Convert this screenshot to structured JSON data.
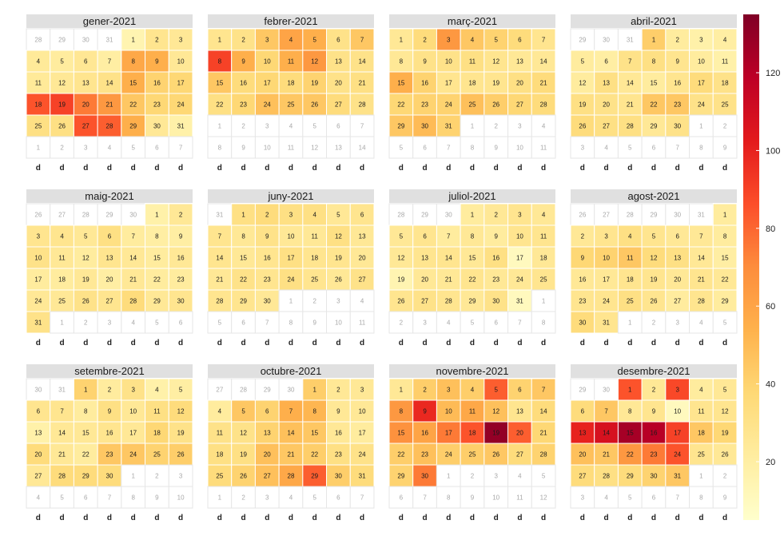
{
  "chart_data": {
    "type": "heatmap",
    "subtype": "calendar",
    "year": 2021,
    "week_start": "monday",
    "weekday_labels": [
      "d",
      "d",
      "d",
      "d",
      "d",
      "d",
      "d"
    ],
    "value_range": [
      5,
      135
    ],
    "colorbar": {
      "ticks": [
        20,
        40,
        60,
        80,
        100,
        120
      ],
      "colors": [
        "#ffffcc",
        "#ffeda0",
        "#fed976",
        "#feb24c",
        "#fd8d3c",
        "#fc4e2a",
        "#e31a1c",
        "#bd0026",
        "#800026"
      ],
      "placement": "right"
    },
    "months": [
      {
        "title": "gener-2021",
        "values": [
          15,
          28,
          25,
          24,
          22,
          26,
          20,
          58,
          55,
          25,
          24,
          25,
          28,
          30,
          55,
          40,
          38,
          85,
          90,
          75,
          65,
          45,
          38,
          38,
          32,
          32,
          85,
          82,
          55,
          25,
          18
        ]
      },
      {
        "title": "febrer-2021",
        "values": [
          28,
          30,
          45,
          60,
          55,
          30,
          45,
          90,
          55,
          38,
          55,
          65,
          30,
          30,
          45,
          35,
          38,
          35,
          40,
          30,
          32,
          32,
          38,
          48,
          45,
          45,
          35,
          30
        ]
      },
      {
        "title": "març-2021",
        "values": [
          25,
          35,
          65,
          45,
          40,
          35,
          28,
          25,
          30,
          30,
          32,
          28,
          25,
          25,
          55,
          40,
          28,
          28,
          28,
          32,
          35,
          38,
          40,
          40,
          48,
          42,
          38,
          35,
          45,
          50,
          40
        ]
      },
      {
        "title": "abril-2021",
        "values": [
          42,
          22,
          18,
          20,
          22,
          20,
          30,
          32,
          28,
          22,
          18,
          22,
          32,
          25,
          22,
          28,
          35,
          30,
          32,
          30,
          28,
          45,
          45,
          30,
          30,
          35,
          32,
          32,
          25,
          30
        ]
      },
      {
        "title": "maig-2021",
        "values": [
          18,
          25,
          28,
          28,
          25,
          32,
          22,
          20,
          20,
          30,
          25,
          22,
          28,
          25,
          22,
          25,
          22,
          22,
          25,
          20,
          25,
          22,
          22,
          25,
          25,
          30,
          28,
          35,
          25,
          28,
          30
        ]
      },
      {
        "title": "juny-2021",
        "values": [
          32,
          35,
          32,
          32,
          25,
          28,
          28,
          25,
          30,
          25,
          25,
          32,
          25,
          28,
          25,
          28,
          32,
          28,
          28,
          25,
          25,
          30,
          28,
          32,
          28,
          25,
          30,
          28,
          28,
          25
        ]
      },
      {
        "title": "juliol-2021",
        "values": [
          22,
          25,
          28,
          25,
          25,
          28,
          22,
          25,
          22,
          28,
          28,
          25,
          28,
          28,
          25,
          32,
          10,
          25,
          15,
          25,
          25,
          28,
          25,
          25,
          28,
          28,
          30,
          28,
          25,
          30,
          10
        ]
      },
      {
        "title": "agost-2021",
        "values": [
          22,
          25,
          28,
          32,
          28,
          25,
          25,
          22,
          38,
          40,
          45,
          35,
          32,
          25,
          20,
          25,
          25,
          28,
          28,
          25,
          28,
          25,
          28,
          28,
          32,
          28,
          22,
          28,
          22,
          35,
          28
        ]
      },
      {
        "title": "setembre-2021",
        "values": [
          40,
          22,
          30,
          18,
          20,
          28,
          28,
          22,
          32,
          25,
          32,
          35,
          18,
          25,
          25,
          28,
          25,
          38,
          30,
          35,
          25,
          22,
          45,
          45,
          40,
          42,
          25,
          35,
          35,
          35
        ]
      },
      {
        "title": "octubre-2021",
        "values": [
          42,
          25,
          25,
          22,
          45,
          40,
          55,
          52,
          25,
          25,
          30,
          30,
          40,
          48,
          45,
          25,
          22,
          32,
          32,
          48,
          45,
          42,
          32,
          30,
          35,
          40,
          48,
          58,
          82,
          42,
          35
        ]
      },
      {
        "title": "novembre-2021",
        "values": [
          25,
          42,
          48,
          42,
          82,
          40,
          45,
          65,
          98,
          50,
          58,
          48,
          28,
          35,
          68,
          60,
          75,
          85,
          130,
          82,
          38,
          42,
          48,
          42,
          42,
          45,
          35,
          40,
          40,
          75
        ]
      },
      {
        "title": "desembre-2021",
        "values": [
          85,
          25,
          88,
          22,
          25,
          35,
          45,
          25,
          28,
          10,
          28,
          28,
          100,
          108,
          125,
          120,
          90,
          45,
          38,
          48,
          45,
          65,
          75,
          85,
          28,
          25,
          35,
          32,
          35,
          40,
          45
        ]
      }
    ]
  }
}
